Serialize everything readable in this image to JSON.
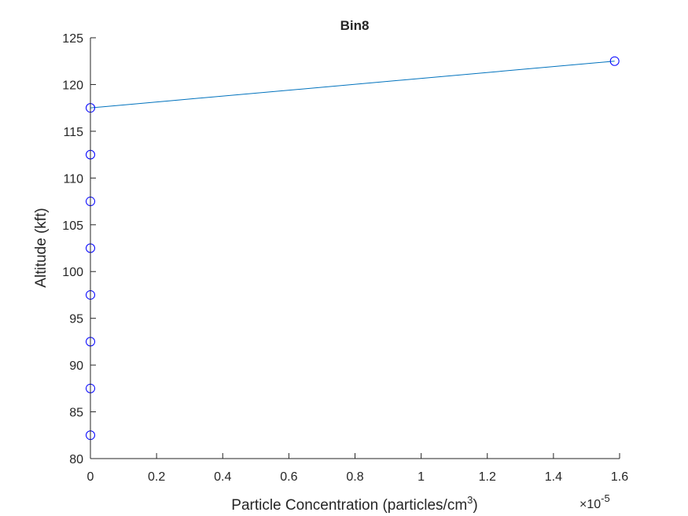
{
  "chart_data": {
    "type": "line",
    "title": "Bin8",
    "xlabel_main": "Particle Concentration (particles/cm",
    "xlabel_sup": "3",
    "xlabel_tail": ")",
    "ylabel": "Altitude (kft)",
    "x_exponent_label": "×10",
    "x_exponent_sup": "-5",
    "x_multiplier": 1e-05,
    "xlim": [
      0,
      1.6
    ],
    "ylim": [
      80,
      125
    ],
    "xticks": [
      0,
      0.2,
      0.4,
      0.6,
      0.8,
      1,
      1.2,
      1.4,
      1.6
    ],
    "xtick_labels": [
      "0",
      "0.2",
      "0.4",
      "0.6",
      "0.8",
      "1",
      "1.2",
      "1.4",
      "1.6"
    ],
    "yticks": [
      80,
      85,
      90,
      95,
      100,
      105,
      110,
      115,
      120,
      125
    ],
    "ytick_labels": [
      "80",
      "85",
      "90",
      "95",
      "100",
      "105",
      "110",
      "115",
      "120",
      "125"
    ],
    "grid": false,
    "series": [
      {
        "x": [
          0,
          0,
          0,
          0,
          0,
          0,
          0,
          0,
          1.585
        ],
        "y": [
          82.5,
          87.5,
          92.5,
          97.5,
          102.5,
          107.5,
          112.5,
          117.5,
          122.5
        ],
        "line_color": "#0072BD",
        "marker": "circle",
        "marker_color": "#0000FF"
      }
    ]
  }
}
